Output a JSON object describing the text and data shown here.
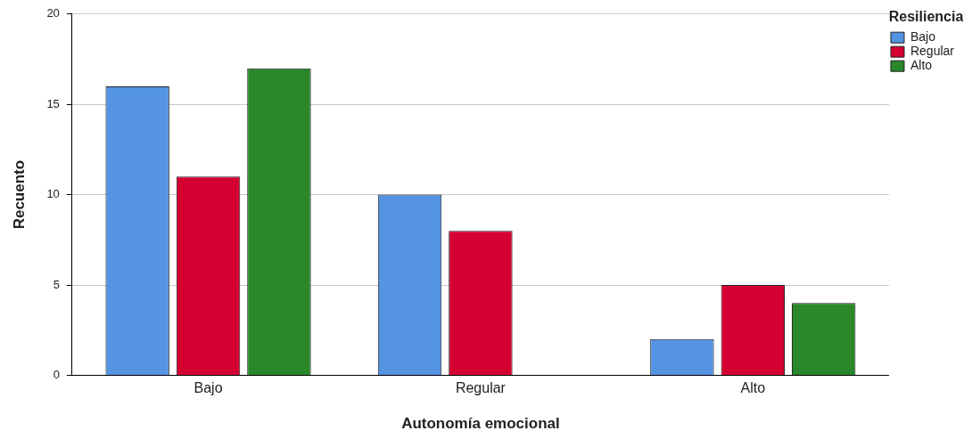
{
  "chart_data": {
    "type": "bar",
    "xlabel": "Autonomía emocional",
    "ylabel": "Recuento",
    "legend_title": "Resiliencia",
    "categories": [
      "Bajo",
      "Regular",
      "Alto"
    ],
    "series": [
      {
        "name": "Bajo",
        "color": "#5593e3",
        "values": [
          16,
          10,
          2
        ]
      },
      {
        "name": "Regular",
        "color": "#d50032",
        "values": [
          11,
          8,
          5
        ]
      },
      {
        "name": "Alto",
        "color": "#2a872a",
        "values": [
          17,
          0,
          4
        ]
      }
    ],
    "ylim": [
      0,
      20
    ],
    "yticks": [
      0,
      5,
      10,
      15,
      20
    ],
    "grid": "y",
    "legend": "top right"
  }
}
